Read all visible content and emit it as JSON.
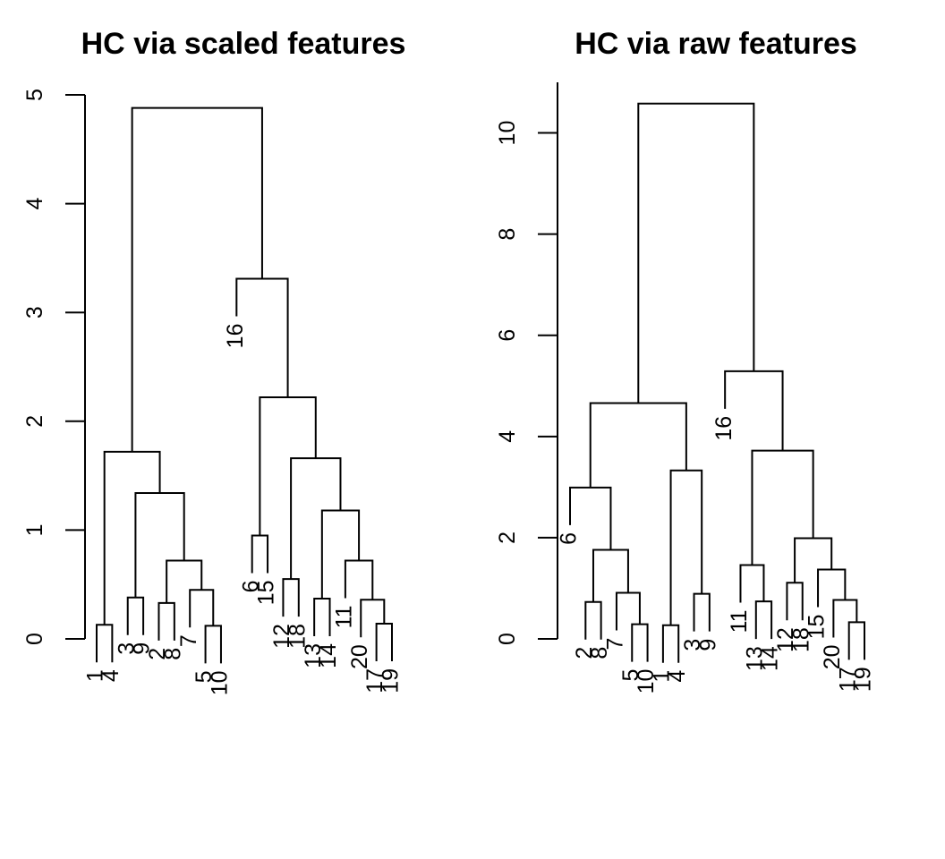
{
  "chart_data": [
    {
      "type": "dendrogram",
      "title": "HC via scaled features",
      "ylim": [
        0,
        5
      ],
      "yticks": [
        0,
        1,
        2,
        3,
        4,
        5
      ],
      "leaf_order": [
        "1",
        "4",
        "3",
        "9",
        "2",
        "8",
        "7",
        "5",
        "10",
        "16",
        "6",
        "15",
        "12",
        "18",
        "13",
        "14",
        "11",
        "20",
        "17",
        "19"
      ],
      "merges": [
        {
          "id": "a",
          "left": "1",
          "right": "4",
          "height": 0.13
        },
        {
          "id": "b",
          "left": "3",
          "right": "9",
          "height": 0.38
        },
        {
          "id": "c",
          "left": "2",
          "right": "8",
          "height": 0.33
        },
        {
          "id": "d",
          "left": "5",
          "right": "10",
          "height": 0.12
        },
        {
          "id": "e",
          "left": "7",
          "right": "d",
          "height": 0.45
        },
        {
          "id": "f",
          "left": "c",
          "right": "e",
          "height": 0.72
        },
        {
          "id": "g",
          "left": "b",
          "right": "f",
          "height": 1.34
        },
        {
          "id": "h",
          "left": "a",
          "right": "g",
          "height": 1.72
        },
        {
          "id": "i",
          "left": "6",
          "right": "15",
          "height": 0.95
        },
        {
          "id": "j",
          "left": "12",
          "right": "18",
          "height": 0.55
        },
        {
          "id": "k",
          "left": "13",
          "right": "14",
          "height": 0.37
        },
        {
          "id": "l",
          "left": "17",
          "right": "19",
          "height": 0.14
        },
        {
          "id": "m",
          "left": "20",
          "right": "l",
          "height": 0.36
        },
        {
          "id": "n",
          "left": "11",
          "right": "m",
          "height": 0.72
        },
        {
          "id": "o",
          "left": "k",
          "right": "n",
          "height": 1.18
        },
        {
          "id": "p",
          "left": "j",
          "right": "o",
          "height": 1.66
        },
        {
          "id": "q",
          "left": "i",
          "right": "p",
          "height": 2.22
        },
        {
          "id": "r",
          "left": "16",
          "right": "q",
          "height": 3.31
        },
        {
          "id": "s",
          "left": "h",
          "right": "r",
          "height": 4.88
        }
      ]
    },
    {
      "type": "dendrogram",
      "title": "HC via raw features",
      "ylim": [
        0,
        11
      ],
      "yticks": [
        0,
        2,
        4,
        6,
        8,
        10
      ],
      "leaf_order": [
        "6",
        "2",
        "8",
        "7",
        "5",
        "10",
        "1",
        "4",
        "3",
        "9",
        "16",
        "11",
        "13",
        "14",
        "12",
        "18",
        "15",
        "20",
        "17",
        "19"
      ],
      "merges": [
        {
          "id": "a",
          "left": "2",
          "right": "8",
          "height": 0.73
        },
        {
          "id": "b",
          "left": "5",
          "right": "10",
          "height": 0.29
        },
        {
          "id": "c",
          "left": "7",
          "right": "b",
          "height": 0.91
        },
        {
          "id": "d",
          "left": "a",
          "right": "c",
          "height": 1.76
        },
        {
          "id": "e",
          "left": "6",
          "right": "d",
          "height": 2.99
        },
        {
          "id": "f",
          "left": "1",
          "right": "4",
          "height": 0.27
        },
        {
          "id": "g",
          "left": "3",
          "right": "9",
          "height": 0.89
        },
        {
          "id": "h",
          "left": "f",
          "right": "g",
          "height": 3.33
        },
        {
          "id": "i",
          "left": "e",
          "right": "h",
          "height": 4.66
        },
        {
          "id": "j",
          "left": "13",
          "right": "14",
          "height": 0.74
        },
        {
          "id": "k",
          "left": "11",
          "right": "j",
          "height": 1.46
        },
        {
          "id": "l",
          "left": "12",
          "right": "18",
          "height": 1.11
        },
        {
          "id": "m",
          "left": "17",
          "right": "19",
          "height": 0.33
        },
        {
          "id": "n",
          "left": "20",
          "right": "m",
          "height": 0.77
        },
        {
          "id": "o",
          "left": "15",
          "right": "n",
          "height": 1.37
        },
        {
          "id": "p",
          "left": "l",
          "right": "o",
          "height": 1.99
        },
        {
          "id": "q",
          "left": "k",
          "right": "p",
          "height": 3.72
        },
        {
          "id": "r",
          "left": "16",
          "right": "q",
          "height": 5.29
        },
        {
          "id": "s",
          "left": "i",
          "right": "r",
          "height": 10.58
        }
      ]
    }
  ]
}
